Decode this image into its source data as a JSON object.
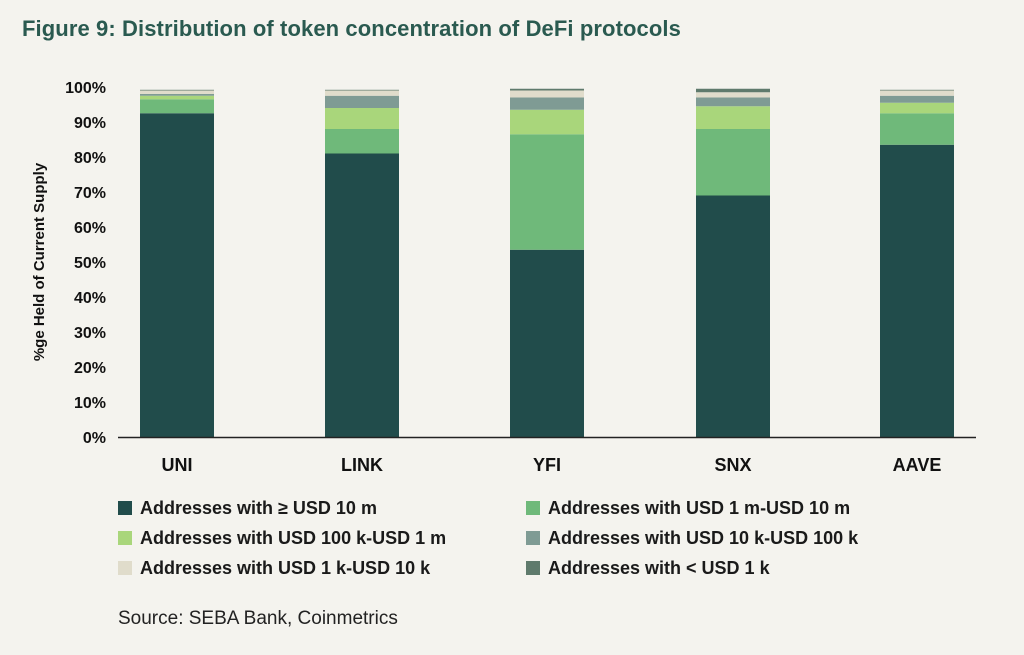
{
  "title": "Figure 9: Distribution of token concentration of DeFi protocols",
  "source": "Source: SEBA Bank, Coinmetrics",
  "colors": {
    "ge10m": "#214c4b",
    "1m_10m": "#6fb97a",
    "100k_1m": "#a9d67b",
    "10k_100k": "#7f9b94",
    "1k_10k": "#e0dccb",
    "lt1k": "#5f7a6c",
    "axis": "#222222",
    "title": "#2a5a50"
  },
  "legend": [
    {
      "label": "Addresses with ≥ USD 10 m",
      "color_key": "ge10m"
    },
    {
      "label": "Addresses with USD 1 m-USD 10 m",
      "color_key": "1m_10m"
    },
    {
      "label": "Addresses with USD 100 k-USD 1 m",
      "color_key": "100k_1m"
    },
    {
      "label": "Addresses with USD 10 k-USD 100 k",
      "color_key": "10k_100k"
    },
    {
      "label": "Addresses with USD 1 k-USD 10 k",
      "color_key": "1k_10k"
    },
    {
      "label": "Addresses with < USD 1 k",
      "color_key": "lt1k"
    }
  ],
  "chart_data": {
    "type": "bar",
    "stacked": true,
    "title": "Figure 9: Distribution of token concentration of DeFi protocols",
    "xlabel": "",
    "ylabel": "%ge Held of Current Supply",
    "ylim": [
      0,
      100
    ],
    "yticks": [
      "0%",
      "10%",
      "20%",
      "30%",
      "40%",
      "50%",
      "60%",
      "70%",
      "80%",
      "90%",
      "100%"
    ],
    "grid": false,
    "legend_position": "bottom",
    "categories": [
      "UNI",
      "LINK",
      "YFI",
      "SNX",
      "AAVE"
    ],
    "series": [
      {
        "name": "Addresses with ≥ USD 10 m",
        "color_key": "ge10m",
        "values": [
          92.5,
          81,
          53.5,
          69,
          83.5
        ]
      },
      {
        "name": "Addresses with USD 1 m-USD 10 m",
        "color_key": "1m_10m",
        "values": [
          4,
          7,
          33,
          19,
          9
        ]
      },
      {
        "name": "Addresses with USD 100 k-USD 1 m",
        "color_key": "100k_1m",
        "values": [
          1,
          6,
          7,
          6.5,
          3
        ]
      },
      {
        "name": "Addresses with USD 10 k-USD 100 k",
        "color_key": "10k_100k",
        "values": [
          0.5,
          3.5,
          3.5,
          2.5,
          2
        ]
      },
      {
        "name": "Addresses with USD 1 k-USD 10 k",
        "color_key": "1k_10k",
        "values": [
          1,
          1.5,
          2,
          1.5,
          1.5
        ]
      },
      {
        "name": "Addresses with < USD 1 k",
        "color_key": "lt1k",
        "values": [
          0.2,
          0.2,
          0.5,
          1,
          0.2
        ]
      }
    ]
  }
}
